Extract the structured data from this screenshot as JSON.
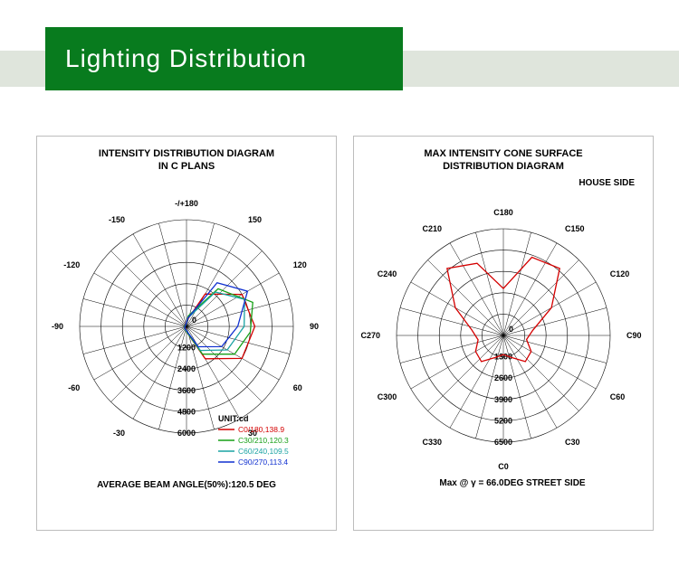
{
  "header": {
    "title": "Lighting Distribution"
  },
  "panel_a": {
    "type": "polar-chart",
    "title_l1": "INTENSITY DISTRIBUTION DIAGRAM",
    "title_l2": "IN C PLANS",
    "units_label": "UNIT:cd",
    "footer": "AVERAGE BEAM ANGLE(50%):120.5 DEG",
    "radial_zero": "0",
    "radial_ticks": [
      "1200",
      "2400",
      "3600",
      "4800",
      "6000"
    ],
    "angle_labels": [
      {
        "ang": 90,
        "txt": "-/+180"
      },
      {
        "ang": 60,
        "txt": "-150"
      },
      {
        "ang": 120,
        "txt": "150"
      },
      {
        "ang": 30,
        "txt": "-120"
      },
      {
        "ang": 150,
        "txt": "120"
      },
      {
        "ang": 0,
        "txt": "-90"
      },
      {
        "ang": 180,
        "txt": "90"
      },
      {
        "ang": -30,
        "txt": "-60"
      },
      {
        "ang": 210,
        "txt": "60"
      },
      {
        "ang": -60,
        "txt": "-30"
      },
      {
        "ang": 240,
        "txt": "30"
      }
    ],
    "rings": 5,
    "spokes": 24,
    "legend": [
      {
        "color": "#d40000",
        "label": "C0/180,138.9"
      },
      {
        "color": "#17a017",
        "label": "C30/210,120.3"
      },
      {
        "color": "#1aa3a3",
        "label": "C60/240,109.5"
      },
      {
        "color": "#1030d0",
        "label": "C90/270,113.4"
      }
    ],
    "series": [
      {
        "color": "#d40000",
        "pts": [
          [
            0,
            0.05
          ],
          [
            30,
            0.35
          ],
          [
            60,
            0.6
          ],
          [
            90,
            0.64
          ],
          [
            120,
            0.6
          ],
          [
            150,
            0.35
          ],
          [
            180,
            0.05
          ],
          [
            210,
            0.02
          ],
          [
            240,
            0.02
          ],
          [
            270,
            0.02
          ],
          [
            300,
            0.02
          ],
          [
            330,
            0.02
          ]
        ]
      },
      {
        "color": "#17a017",
        "pts": [
          [
            0,
            0.05
          ],
          [
            30,
            0.3
          ],
          [
            60,
            0.52
          ],
          [
            85,
            0.6
          ],
          [
            110,
            0.66
          ],
          [
            140,
            0.46
          ],
          [
            170,
            0.1
          ],
          [
            200,
            0.02
          ],
          [
            260,
            0.02
          ],
          [
            330,
            0.03
          ]
        ]
      },
      {
        "color": "#1aa3a3",
        "pts": [
          [
            0,
            0.04
          ],
          [
            30,
            0.26
          ],
          [
            60,
            0.44
          ],
          [
            90,
            0.54
          ],
          [
            115,
            0.6
          ],
          [
            140,
            0.42
          ],
          [
            170,
            0.08
          ],
          [
            200,
            0.02
          ],
          [
            300,
            0.02
          ],
          [
            340,
            0.03
          ]
        ]
      },
      {
        "color": "#1030d0",
        "pts": [
          [
            0,
            0.04
          ],
          [
            30,
            0.22
          ],
          [
            60,
            0.38
          ],
          [
            90,
            0.48
          ],
          [
            120,
            0.66
          ],
          [
            145,
            0.5
          ],
          [
            170,
            0.08
          ],
          [
            200,
            0.02
          ],
          [
            300,
            0.02
          ],
          [
            340,
            0.03
          ]
        ]
      }
    ],
    "grid_color": "#000000",
    "bg": "#ffffff",
    "font_size_title": 11,
    "font_size_tick": 9
  },
  "panel_b": {
    "type": "polar-chart",
    "title_l1": "MAX INTENSITY CONE SURFACE",
    "title_l2": "DISTRIBUTION DIAGRAM",
    "corner_label": "HOUSE SIDE",
    "footer_l1": "Max @ γ = 66.0DEG STREET SIDE",
    "radial_zero": "0",
    "radial_ticks": [
      "1300",
      "2600",
      "3900",
      "5200",
      "6500"
    ],
    "axis_label_bottom": "C0",
    "angle_labels": [
      {
        "ang": 90,
        "txt": "C180"
      },
      {
        "ang": 60,
        "txt": "C210"
      },
      {
        "ang": 120,
        "txt": "C150"
      },
      {
        "ang": 30,
        "txt": "C240"
      },
      {
        "ang": 150,
        "txt": "C120"
      },
      {
        "ang": 0,
        "txt": "C270"
      },
      {
        "ang": 180,
        "txt": "C90"
      },
      {
        "ang": -30,
        "txt": "C300"
      },
      {
        "ang": 210,
        "txt": "C60"
      },
      {
        "ang": -60,
        "txt": "C330"
      },
      {
        "ang": 240,
        "txt": "C30"
      }
    ],
    "rings": 5,
    "spokes": 24,
    "series": [
      {
        "color": "#d40000",
        "pts": [
          [
            0,
            0.18
          ],
          [
            20,
            0.22
          ],
          [
            40,
            0.32
          ],
          [
            60,
            0.3
          ],
          [
            80,
            0.22
          ],
          [
            100,
            0.28
          ],
          [
            120,
            0.52
          ],
          [
            140,
            0.82
          ],
          [
            160,
            0.78
          ],
          [
            180,
            0.44
          ],
          [
            200,
            0.72
          ],
          [
            220,
            0.82
          ],
          [
            240,
            0.52
          ],
          [
            260,
            0.3
          ],
          [
            280,
            0.24
          ],
          [
            300,
            0.3
          ],
          [
            320,
            0.32
          ],
          [
            340,
            0.22
          ]
        ]
      }
    ],
    "grid_color": "#000000",
    "bg": "#ffffff",
    "font_size_title": 11,
    "font_size_tick": 9
  },
  "colors": {
    "header_bg": "#087b1e",
    "header_text": "#ffffff",
    "band": "#dfe5dc",
    "panel_border": "#bdbdbd",
    "page_bg": "#ffffff"
  }
}
